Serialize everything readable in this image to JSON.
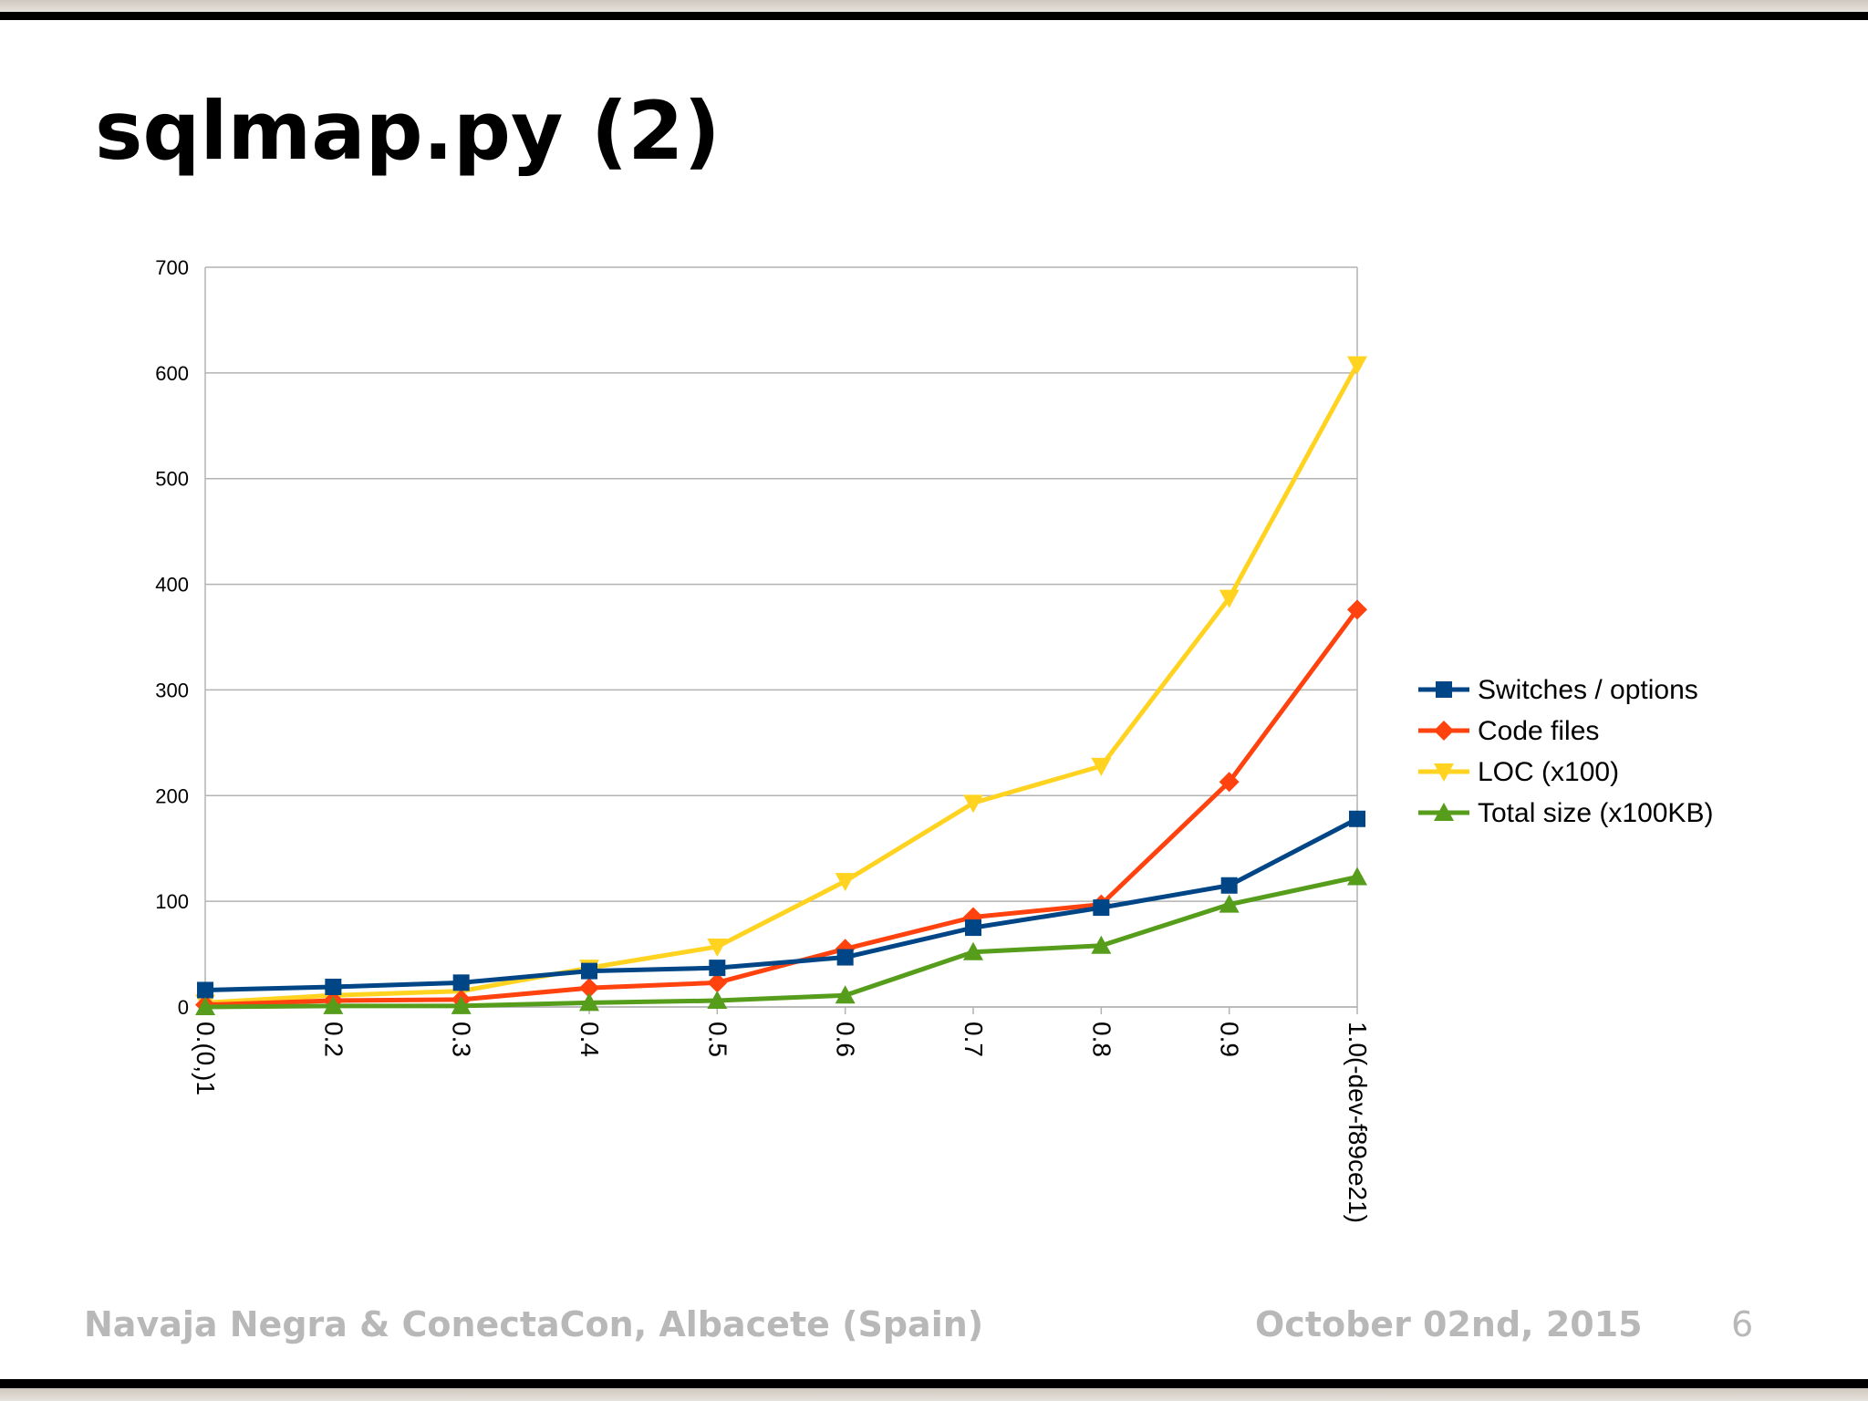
{
  "slide": {
    "title": "sqlmap.py (2)",
    "footer_left": "Navaja Negra & ConectaCon, Albacete (Spain)",
    "footer_date": "October 02nd, 2015",
    "page_number": "6"
  },
  "chart_data": {
    "type": "line",
    "title": "",
    "xlabel": "",
    "ylabel": "",
    "categories": [
      "0.(0,)1",
      "0.2",
      "0.3",
      "0.4",
      "0.5",
      "0.6",
      "0.7",
      "0.8",
      "0.9",
      "1.0(-dev-f89ce21)"
    ],
    "ylim": [
      0,
      700
    ],
    "yticks": [
      0,
      100,
      200,
      300,
      400,
      500,
      600,
      700
    ],
    "grid": true,
    "legend": "right",
    "series": [
      {
        "name": "Switches / options",
        "color": "#004586",
        "marker": "square",
        "values": [
          16,
          19,
          23,
          34,
          37,
          47,
          75,
          94,
          115,
          178
        ]
      },
      {
        "name": "Code files",
        "color": "#ff420e",
        "marker": "diamond",
        "values": [
          2,
          6,
          7,
          18,
          23,
          55,
          85,
          97,
          213,
          376
        ]
      },
      {
        "name": "LOC (x100)",
        "color": "#ffd320",
        "marker": "triangle-down",
        "values": [
          4,
          11,
          15,
          37,
          57,
          119,
          193,
          228,
          387,
          608
        ]
      },
      {
        "name": "Total size (x100KB)",
        "color": "#579d1c",
        "marker": "triangle-up",
        "values": [
          0,
          1,
          1,
          4,
          6,
          11,
          52,
          58,
          97,
          123
        ]
      }
    ]
  }
}
